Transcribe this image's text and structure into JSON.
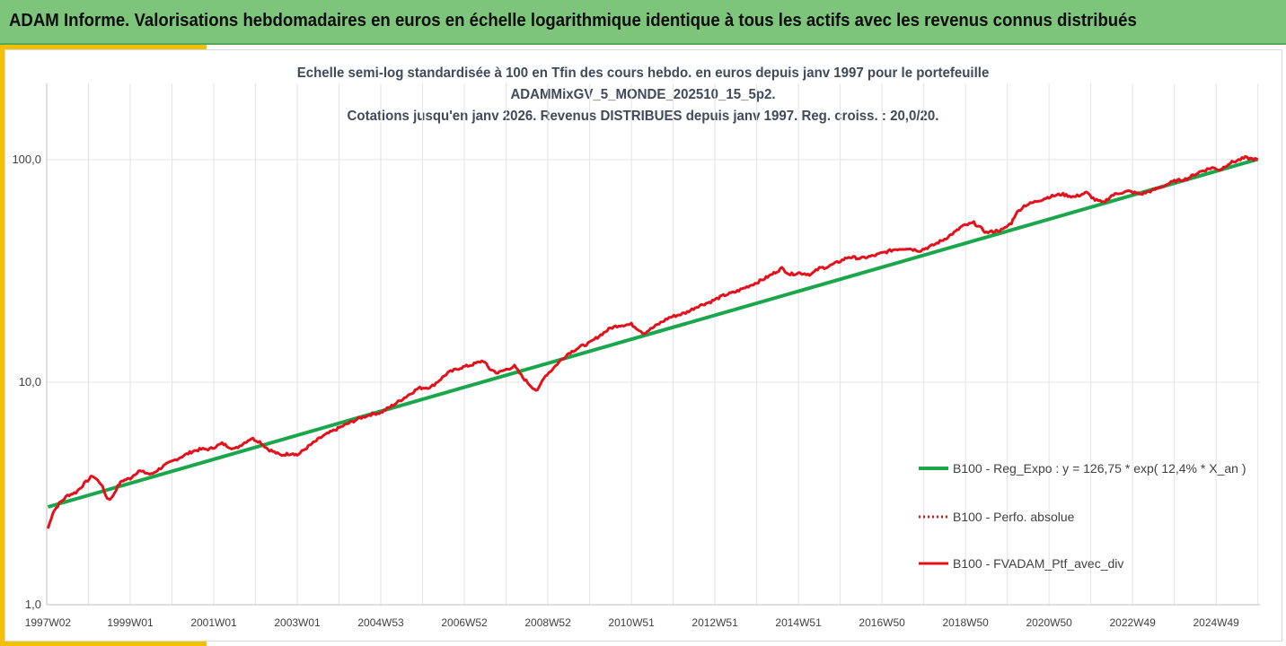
{
  "header": {
    "title": "ADAM Informe. Valorisations hebdomadaires en euros en échelle logarithmique identique à tous les actifs avec les revenus connus distribués"
  },
  "colors": {
    "header_bg": "#7dc57b",
    "accent": "#f2c000",
    "regression": "#1aa64b",
    "portfolio": "#e4101b",
    "perfo": "#e4101b"
  },
  "chart_data": {
    "type": "line",
    "title": [
      "Echelle semi-log standardisée à 100 en Tfin des cours hebdo.  en euros depuis janv 1997 pour le portefeuille",
      "ADAMMixGV_5_MONDE_202510_15_5p2.",
      "Cotations  jusqu'en janv 2026. Revenus DISTRIBUES depuis janv 1997. Reg. croiss. : 20,0/20."
    ],
    "y_scale": "log",
    "ylim": [
      1,
      220
    ],
    "yticks": [
      {
        "value": 1,
        "label": "1,0"
      },
      {
        "value": 10,
        "label": "10,0"
      },
      {
        "value": 100,
        "label": "100,0"
      }
    ],
    "xlim": [
      1997.0,
      2026.05
    ],
    "xticks": [
      {
        "value": 1997.03,
        "label": "1997W02"
      },
      {
        "value": 1999.0,
        "label": "1999W01"
      },
      {
        "value": 2001.0,
        "label": "2001W01"
      },
      {
        "value": 2003.0,
        "label": "2003W01"
      },
      {
        "value": 2005.0,
        "label": "2004W53"
      },
      {
        "value": 2007.0,
        "label": "2006W52"
      },
      {
        "value": 2009.0,
        "label": "2008W52"
      },
      {
        "value": 2011.0,
        "label": "2010W51"
      },
      {
        "value": 2013.0,
        "label": "2012W51"
      },
      {
        "value": 2015.0,
        "label": "2014W51"
      },
      {
        "value": 2017.0,
        "label": "2016W50"
      },
      {
        "value": 2019.0,
        "label": "2018W50"
      },
      {
        "value": 2021.0,
        "label": "2020W50"
      },
      {
        "value": 2023.0,
        "label": "2022W49"
      },
      {
        "value": 2025.0,
        "label": "2024W49"
      }
    ],
    "grid": true,
    "legend_position": "right",
    "series": [
      {
        "name": "B100 - Reg_Expo : y = 126,75 * exp( 12,4% *  X_an )",
        "style": "solid-green",
        "x": [
          1997.03,
          2026.0
        ],
        "y": [
          2.75,
          100.5
        ]
      },
      {
        "name": "B100 - Perfo. absolue",
        "style": "dotted-red",
        "x": [],
        "y": []
      },
      {
        "name": "B100 - FVADAM_Ptf_avec_div",
        "style": "solid-red",
        "x": [
          1997.03,
          1997.15,
          1997.3,
          1997.5,
          1997.7,
          1997.9,
          1998.1,
          1998.3,
          1998.45,
          1998.55,
          1998.7,
          1998.8,
          1998.9,
          1999.0,
          1999.2,
          1999.5,
          1999.8,
          2000.0,
          2000.2,
          2000.5,
          2000.7,
          2000.9,
          2001.2,
          2001.5,
          2001.7,
          2001.9,
          2002.1,
          2002.3,
          2002.6,
          2002.9,
          2003.0,
          2003.3,
          2003.6,
          2003.9,
          2004.2,
          2004.5,
          2004.8,
          2005.0,
          2005.3,
          2005.6,
          2005.9,
          2006.2,
          2006.4,
          2006.6,
          2006.9,
          2007.2,
          2007.45,
          2007.6,
          2007.8,
          2008.0,
          2008.2,
          2008.4,
          2008.6,
          2008.75,
          2008.9,
          2009.1,
          2009.3,
          2009.5,
          2009.8,
          2010.0,
          2010.3,
          2010.5,
          2010.7,
          2011.0,
          2011.3,
          2011.5,
          2011.7,
          2011.9,
          2012.1,
          2012.3,
          2012.6,
          2012.9,
          2013.2,
          2013.5,
          2013.8,
          2014.0,
          2014.3,
          2014.6,
          2014.8,
          2015.0,
          2015.3,
          2015.5,
          2015.7,
          2016.0,
          2016.2,
          2016.5,
          2016.8,
          2017.0,
          2017.3,
          2017.6,
          2017.9,
          2018.2,
          2018.5,
          2018.8,
          2018.9,
          2019.2,
          2019.5,
          2019.9,
          2020.1,
          2020.2,
          2020.4,
          2020.7,
          2021.0,
          2021.3,
          2021.6,
          2021.9,
          2022.1,
          2022.3,
          2022.5,
          2022.7,
          2022.9,
          2023.2,
          2023.5,
          2023.8,
          2024.0,
          2024.3,
          2024.6,
          2024.9,
          2025.1,
          2025.3,
          2025.5,
          2025.7,
          2025.9,
          2026.0
        ],
        "y": [
          2.2,
          2.6,
          2.85,
          3.1,
          3.2,
          3.5,
          3.8,
          3.5,
          3.0,
          3.0,
          3.4,
          3.6,
          3.65,
          3.7,
          4.0,
          3.85,
          4.2,
          4.4,
          4.6,
          4.9,
          5.0,
          5.0,
          5.3,
          5.0,
          5.3,
          5.6,
          5.4,
          5.0,
          4.7,
          4.8,
          4.7,
          5.2,
          5.7,
          6.1,
          6.5,
          6.9,
          7.2,
          7.3,
          7.9,
          8.6,
          9.4,
          9.5,
          10.2,
          11.0,
          11.6,
          12.0,
          12.5,
          11.5,
          11.0,
          11.4,
          11.8,
          10.5,
          9.6,
          9.1,
          10.5,
          11.4,
          12.5,
          13.5,
          14.5,
          15.0,
          16.5,
          17.5,
          18.0,
          18.2,
          16.6,
          17.5,
          18.5,
          19.5,
          20.0,
          20.5,
          22.0,
          23.0,
          24.5,
          25.5,
          27.0,
          28.0,
          30.0,
          32.5,
          30.5,
          31.0,
          30.5,
          32.5,
          33.0,
          35.0,
          36.5,
          36.0,
          37.0,
          38.0,
          39.5,
          40.0,
          39.0,
          41.0,
          44.0,
          48.0,
          50.0,
          52.0,
          47.0,
          48.5,
          52.0,
          57.0,
          62.0,
          65.0,
          68.0,
          70.0,
          68.0,
          71.0,
          66.0,
          64.0,
          69.0,
          71.0,
          72.0,
          70.0,
          73.0,
          77.0,
          80.0,
          82.0,
          88.0,
          92.0,
          90.0,
          96.0,
          99.0,
          102.0,
          100.5,
          100.0
        ]
      }
    ]
  }
}
